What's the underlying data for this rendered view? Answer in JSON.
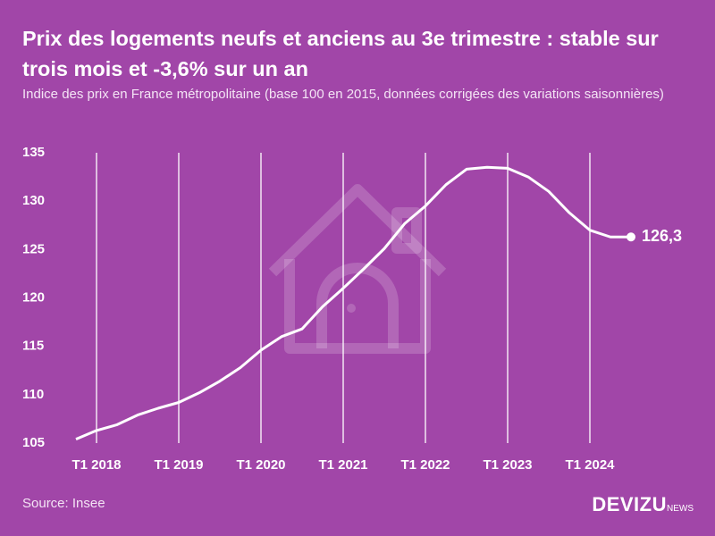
{
  "chart_data": {
    "type": "line",
    "title": "Prix des logements neufs et anciens au 3e trimestre : stable sur trois mois et -3,6% sur un an",
    "subtitle": "Indice des prix en France métropolitaine (base 100 en 2015, données corrigées des variations saisonnières)",
    "source": "Source: Insee",
    "brand": "DEVIZU",
    "brand_suffix": "NEWS",
    "categories": [
      null,
      "T1 2018",
      null,
      null,
      null,
      "T1 2019",
      null,
      null,
      null,
      "T1 2020",
      null,
      null,
      null,
      "T1 2021",
      null,
      null,
      null,
      "T1 2022",
      null,
      null,
      null,
      "T1 2023",
      null,
      null,
      null,
      "T1 2024",
      null,
      null
    ],
    "values": [
      105.4,
      106.3,
      106.9,
      107.9,
      108.6,
      109.2,
      110.2,
      111.4,
      112.8,
      114.6,
      116.0,
      116.8,
      119.1,
      121.0,
      123.0,
      125.1,
      127.7,
      129.5,
      131.7,
      133.3,
      133.5,
      133.4,
      132.5,
      131.0,
      128.8,
      127.0,
      126.3,
      126.3
    ],
    "value_labels": [
      null,
      null,
      null,
      null,
      null,
      null,
      null,
      null,
      null,
      null,
      null,
      null,
      null,
      null,
      null,
      null,
      null,
      null,
      null,
      null,
      null,
      null,
      null,
      null,
      null,
      null,
      null,
      "126,3"
    ],
    "color": "#ffffff",
    "background": "#a146a8",
    "ylim": [
      105,
      135
    ],
    "yticks": [
      105,
      110,
      115,
      120,
      125,
      130,
      135
    ],
    "grid": true
  }
}
